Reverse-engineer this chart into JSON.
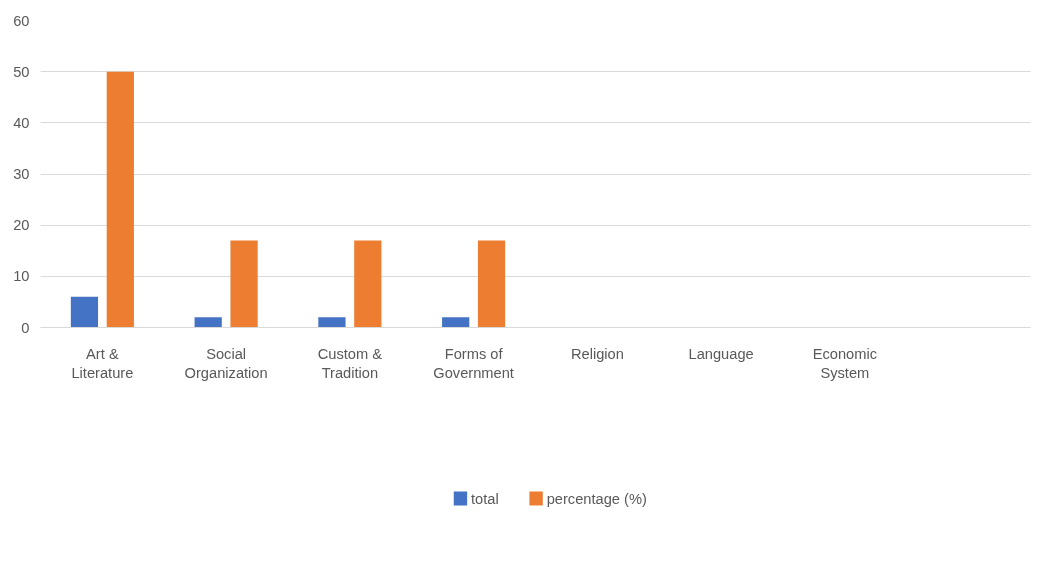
{
  "chart_data": {
    "type": "bar",
    "categories": [
      "Art & Literature",
      "Social Organization",
      "Custom & Tradition",
      "Forms of Government",
      "Religion",
      "Language",
      "Economic System",
      null
    ],
    "series": [
      {
        "name": "total",
        "color": "#4472c4",
        "values": [
          6,
          2,
          2,
          2,
          0,
          0,
          0,
          null
        ]
      },
      {
        "name": "percentage (%)",
        "color": "#ed7d31",
        "values": [
          50,
          17,
          17,
          17,
          0,
          0,
          0,
          null
        ]
      }
    ],
    "ylim": [
      0,
      60
    ],
    "yticks": [
      0,
      10,
      20,
      30,
      40,
      50,
      60
    ],
    "grid": "y",
    "legend": "bottom"
  }
}
